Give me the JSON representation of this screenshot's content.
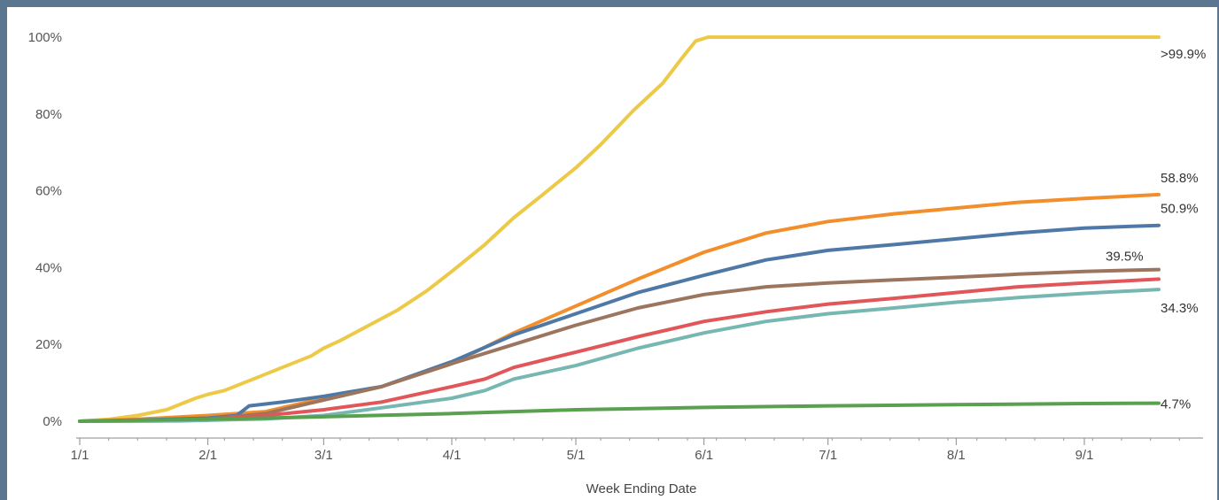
{
  "chart_data": {
    "type": "line",
    "xlabel": "Week Ending Date",
    "ylabel": "",
    "x_ticks": [
      "1/1",
      "2/1",
      "3/1",
      "4/1",
      "5/1",
      "6/1",
      "7/1",
      "8/1",
      "9/1"
    ],
    "x_tick_days": [
      1,
      32,
      60,
      91,
      121,
      152,
      182,
      213,
      244
    ],
    "y_ticks": [
      "0%",
      "20%",
      "40%",
      "60%",
      "80%",
      "100%"
    ],
    "y_tick_values": [
      0,
      20,
      40,
      60,
      80,
      100
    ],
    "ylim": [
      0,
      100
    ],
    "xlim_days": [
      1,
      262
    ],
    "grid": false,
    "legend": "none",
    "series": [
      {
        "color": "#edc948",
        "end_label": ">99.9%",
        "points": [
          [
            1,
            0
          ],
          [
            8,
            0.5
          ],
          [
            15,
            1.5
          ],
          [
            22,
            3
          ],
          [
            29,
            6
          ],
          [
            32,
            7
          ],
          [
            36,
            8
          ],
          [
            43,
            11
          ],
          [
            50,
            14
          ],
          [
            57,
            17
          ],
          [
            60,
            19
          ],
          [
            64,
            21
          ],
          [
            71,
            25
          ],
          [
            78,
            29
          ],
          [
            85,
            34
          ],
          [
            91,
            39
          ],
          [
            99,
            46
          ],
          [
            106,
            53
          ],
          [
            113,
            59
          ],
          [
            121,
            66
          ],
          [
            127,
            72
          ],
          [
            135,
            81
          ],
          [
            142,
            88
          ],
          [
            147,
            95
          ],
          [
            150,
            99
          ],
          [
            153,
            100
          ],
          [
            180,
            100
          ],
          [
            210,
            100
          ],
          [
            262,
            100
          ]
        ]
      },
      {
        "color": "#f28e2b",
        "end_label": "58.8%",
        "points": [
          [
            1,
            0
          ],
          [
            15,
            0.5
          ],
          [
            32,
            1.5
          ],
          [
            46,
            2.5
          ],
          [
            60,
            6
          ],
          [
            74,
            9
          ],
          [
            91,
            15
          ],
          [
            106,
            23
          ],
          [
            121,
            30
          ],
          [
            136,
            37
          ],
          [
            152,
            44
          ],
          [
            167,
            49
          ],
          [
            182,
            52
          ],
          [
            198,
            54
          ],
          [
            213,
            55.5
          ],
          [
            228,
            57
          ],
          [
            244,
            58
          ],
          [
            262,
            59
          ]
        ]
      },
      {
        "color": "#4e79a7",
        "end_label": "50.9%",
        "points": [
          [
            1,
            0
          ],
          [
            15,
            0.3
          ],
          [
            32,
            0.8
          ],
          [
            39,
            1.5
          ],
          [
            42,
            4
          ],
          [
            50,
            5
          ],
          [
            60,
            6.5
          ],
          [
            74,
            9
          ],
          [
            91,
            15.5
          ],
          [
            106,
            22.5
          ],
          [
            121,
            28
          ],
          [
            136,
            33.5
          ],
          [
            152,
            38
          ],
          [
            167,
            42
          ],
          [
            182,
            44.5
          ],
          [
            198,
            46
          ],
          [
            213,
            47.5
          ],
          [
            228,
            49
          ],
          [
            244,
            50.3
          ],
          [
            262,
            51
          ]
        ]
      },
      {
        "color": "#9c755f",
        "end_label": "39.5%",
        "points": [
          [
            1,
            0
          ],
          [
            20,
            0.2
          ],
          [
            32,
            0.5
          ],
          [
            46,
            2
          ],
          [
            60,
            5.5
          ],
          [
            74,
            9
          ],
          [
            91,
            15
          ],
          [
            106,
            20
          ],
          [
            121,
            25
          ],
          [
            136,
            29.5
          ],
          [
            152,
            33
          ],
          [
            167,
            35
          ],
          [
            182,
            36
          ],
          [
            198,
            36.8
          ],
          [
            213,
            37.5
          ],
          [
            228,
            38.3
          ],
          [
            244,
            39
          ],
          [
            262,
            39.5
          ]
        ]
      },
      {
        "color": "#e15759",
        "end_label": "",
        "points": [
          [
            1,
            0
          ],
          [
            20,
            0.1
          ],
          [
            32,
            0.3
          ],
          [
            46,
            1.5
          ],
          [
            60,
            3
          ],
          [
            74,
            5
          ],
          [
            91,
            9
          ],
          [
            99,
            11
          ],
          [
            106,
            14
          ],
          [
            121,
            18
          ],
          [
            136,
            22
          ],
          [
            152,
            26
          ],
          [
            167,
            28.5
          ],
          [
            182,
            30.5
          ],
          [
            198,
            32
          ],
          [
            213,
            33.5
          ],
          [
            228,
            35
          ],
          [
            244,
            36
          ],
          [
            262,
            37
          ]
        ]
      },
      {
        "color": "#76b7b2",
        "end_label": "34.3%",
        "points": [
          [
            1,
            0
          ],
          [
            25,
            0.1
          ],
          [
            46,
            0.6
          ],
          [
            60,
            1.5
          ],
          [
            74,
            3.5
          ],
          [
            91,
            6
          ],
          [
            99,
            8
          ],
          [
            106,
            11
          ],
          [
            121,
            14.5
          ],
          [
            136,
            19
          ],
          [
            152,
            23
          ],
          [
            167,
            26
          ],
          [
            182,
            28
          ],
          [
            198,
            29.5
          ],
          [
            213,
            31
          ],
          [
            228,
            32.2
          ],
          [
            244,
            33.3
          ],
          [
            262,
            34.3
          ]
        ]
      },
      {
        "color": "#59a14f",
        "end_label": "4.7%",
        "points": [
          [
            1,
            0
          ],
          [
            46,
            0.8
          ],
          [
            91,
            2
          ],
          [
            121,
            3
          ],
          [
            152,
            3.6
          ],
          [
            182,
            4
          ],
          [
            213,
            4.3
          ],
          [
            244,
            4.6
          ],
          [
            262,
            4.7
          ]
        ]
      }
    ]
  }
}
